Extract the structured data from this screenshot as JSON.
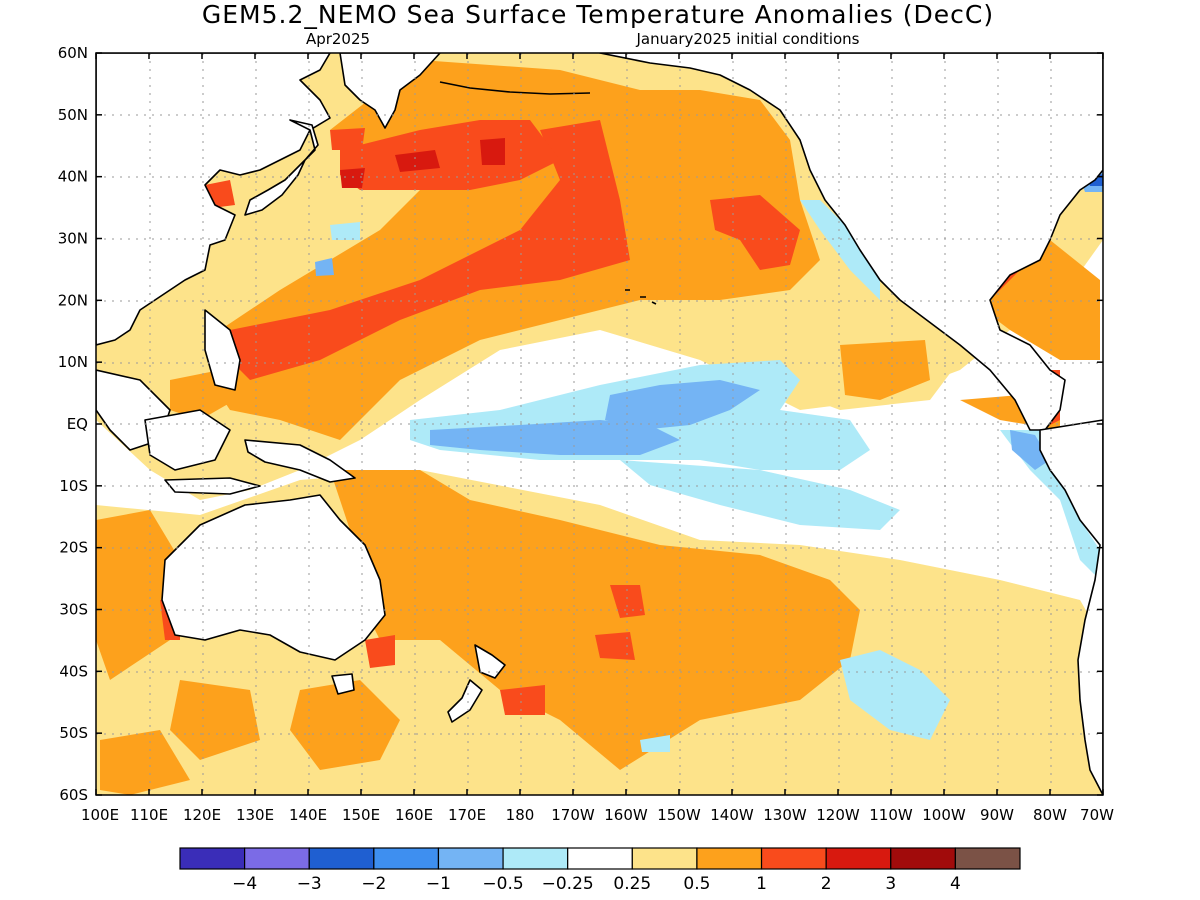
{
  "title": "GEM5.2_NEMO Sea Surface Temperature Anomalies (DecC)",
  "subtitle_left": "Apr2025",
  "subtitle_right": "January2025 initial conditions",
  "lat_labels": [
    "60N",
    "50N",
    "40N",
    "30N",
    "20N",
    "10N",
    "EQ",
    "10S",
    "20S",
    "30S",
    "40S",
    "50S",
    "60S"
  ],
  "lon_labels": [
    "100E",
    "110E",
    "120E",
    "130E",
    "140E",
    "150E",
    "160E",
    "170E",
    "180",
    "170W",
    "160W",
    "150W",
    "140W",
    "130W",
    "120W",
    "110W",
    "100W",
    "90W",
    "80W",
    "70W"
  ],
  "colorbar": {
    "colors": [
      "#3a2db8",
      "#7b6be6",
      "#1f5fd1",
      "#3e8ff0",
      "#74b4f4",
      "#aeeaf8",
      "#ffffff",
      "#fde38a",
      "#fda11c",
      "#f94b1c",
      "#d8190f",
      "#a10b0b",
      "#7b5246"
    ],
    "labels": [
      "−4",
      "−3",
      "−2",
      "−1",
      "−0.5",
      "−0.25",
      "0.25",
      "0.5",
      "1",
      "2",
      "3",
      "4"
    ]
  },
  "colors": {
    "pos_025": "#fde38a",
    "pos_05": "#fda11c",
    "pos_1": "#f94b1c",
    "pos_2": "#d8190f",
    "neg_025": "#aeeaf8",
    "neg_05": "#74b4f4",
    "neg_1": "#3e8ff0",
    "neg_2": "#1f5fd1"
  }
}
